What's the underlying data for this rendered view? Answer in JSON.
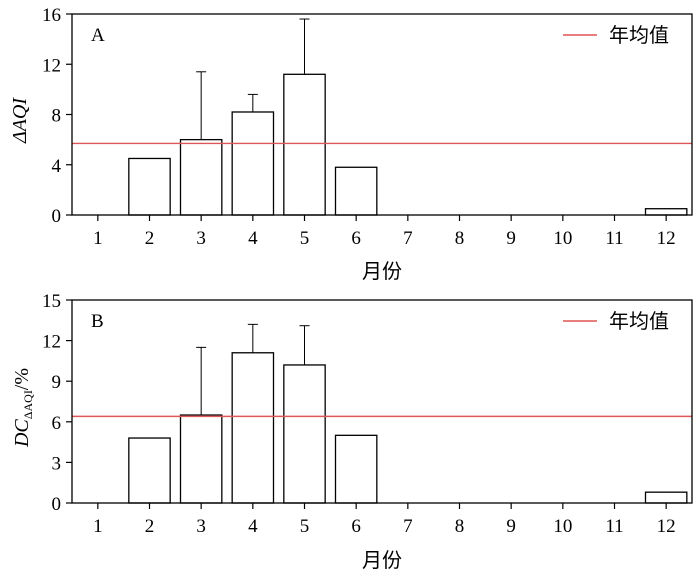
{
  "chart_data": [
    {
      "type": "bar",
      "panel_label": "A",
      "categories": [
        "1",
        "2",
        "3",
        "4",
        "5",
        "6",
        "7",
        "8",
        "9",
        "10",
        "11",
        "12"
      ],
      "values": [
        0,
        4.5,
        6.0,
        8.2,
        11.2,
        3.8,
        0,
        0,
        0,
        0,
        0,
        0.5
      ],
      "error_upper": [
        null,
        null,
        11.4,
        9.6,
        15.6,
        null,
        null,
        null,
        null,
        null,
        null,
        null
      ],
      "reference_line": {
        "name": "年均值",
        "value": 5.7,
        "color": "#e05555"
      },
      "xlabel": "月份",
      "ylabel": "ΔAQI",
      "ylim": [
        0,
        16
      ],
      "yticks": [
        "0",
        "4",
        "8",
        "12",
        "16"
      ],
      "legend_position": "top-right",
      "grid": false
    },
    {
      "type": "bar",
      "panel_label": "B",
      "categories": [
        "1",
        "2",
        "3",
        "4",
        "5",
        "6",
        "7",
        "8",
        "9",
        "10",
        "11",
        "12"
      ],
      "values": [
        0,
        4.8,
        6.5,
        11.1,
        10.2,
        5.0,
        0,
        0,
        0,
        0,
        0,
        0.8
      ],
      "error_upper": [
        null,
        null,
        11.5,
        13.2,
        13.1,
        null,
        null,
        null,
        null,
        null,
        null,
        null
      ],
      "reference_line": {
        "name": "年均值",
        "value": 6.4,
        "color": "#e05555"
      },
      "xlabel": "月份",
      "ylabel": {
        "main": "DC",
        "sub": "ΔAQI",
        "suffix": "/%"
      },
      "ylim": [
        0,
        15
      ],
      "yticks": [
        "0",
        "3",
        "6",
        "9",
        "12",
        "15"
      ],
      "legend_position": "top-right",
      "grid": false
    }
  ]
}
